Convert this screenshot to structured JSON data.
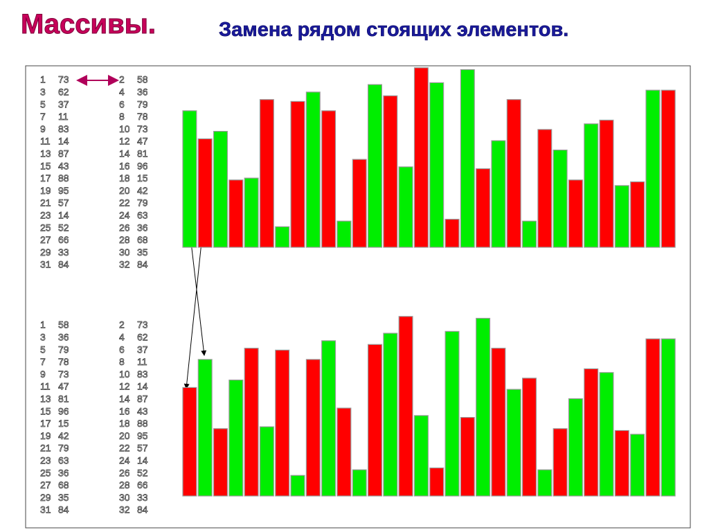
{
  "title": {
    "main": "Массивы.",
    "sub": "Замена рядом стоящих элементов."
  },
  "chart_data": [
    {
      "type": "bar",
      "categories": [
        1,
        2,
        3,
        4,
        5,
        6,
        7,
        8,
        9,
        10,
        11,
        12,
        13,
        14,
        15,
        16,
        17,
        18,
        19,
        20,
        21,
        22,
        23,
        24,
        25,
        26,
        27,
        28,
        29,
        30,
        31,
        32
      ],
      "values": [
        73,
        58,
        62,
        36,
        37,
        79,
        11,
        78,
        83,
        73,
        14,
        47,
        87,
        81,
        43,
        96,
        88,
        15,
        95,
        42,
        57,
        79,
        14,
        63,
        52,
        36,
        66,
        68,
        33,
        35,
        84,
        84
      ],
      "colors": [
        "#00ee00",
        "#ff0000"
      ]
    },
    {
      "type": "bar",
      "categories": [
        1,
        2,
        3,
        4,
        5,
        6,
        7,
        8,
        9,
        10,
        11,
        12,
        13,
        14,
        15,
        16,
        17,
        18,
        19,
        20,
        21,
        22,
        23,
        24,
        25,
        26,
        27,
        28,
        29,
        30,
        31,
        32
      ],
      "values": [
        58,
        73,
        36,
        62,
        79,
        37,
        78,
        11,
        73,
        83,
        47,
        14,
        81,
        87,
        96,
        43,
        15,
        88,
        42,
        95,
        79,
        57,
        63,
        14,
        36,
        52,
        68,
        66,
        35,
        33,
        84,
        84
      ],
      "colors": [
        "#ff0000",
        "#00ee00"
      ]
    }
  ]
}
